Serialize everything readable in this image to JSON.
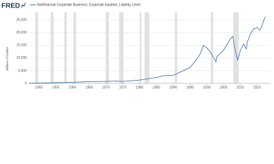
{
  "brand": "FRED",
  "chart_data": {
    "type": "line",
    "legend_label": "Nonfinancial Corporate Business; Corporate Equities; Liability, Level",
    "y_label": "Billions of Dollars",
    "color": "#4572a7",
    "grid": true,
    "xlim": [
      1947,
      2019
    ],
    "ylim": [
      0,
      28000
    ],
    "xticks": [
      1950,
      1955,
      1960,
      1965,
      1970,
      1975,
      1980,
      1985,
      1990,
      1995,
      2000,
      2005,
      2010,
      2015
    ],
    "yticks": [
      0,
      {
        "value": 5000,
        "label": "5,000"
      },
      {
        "value": 10000,
        "label": "10,000"
      },
      {
        "value": 15000,
        "label": "15,000"
      },
      {
        "value": 20000,
        "label": "20,000"
      },
      {
        "value": 25000,
        "label": "25,000"
      }
    ],
    "recessions": [
      [
        1948.9,
        1949.8
      ],
      [
        1953.5,
        1954.4
      ],
      [
        1957.6,
        1958.3
      ],
      [
        1960.3,
        1961.1
      ],
      [
        1969.9,
        1970.9
      ],
      [
        1973.9,
        1975.2
      ],
      [
        1980.0,
        1980.5
      ],
      [
        1981.5,
        1982.9
      ],
      [
        1990.5,
        1991.2
      ],
      [
        2001.2,
        2001.9
      ],
      [
        2007.9,
        2009.5
      ]
    ],
    "x": [
      1947,
      1950,
      1955,
      1960,
      1965,
      1970,
      1973,
      1975,
      1980,
      1985,
      1987,
      1990,
      1993,
      1995,
      1997,
      1998,
      1999,
      2000,
      2001,
      2002.75,
      2003,
      2005,
      2007,
      2007.75,
      2008.5,
      2009.2,
      2010,
      2011,
      2011.75,
      2012,
      2013,
      2014,
      2015,
      2015.75,
      2016.1,
      2016.5,
      2017,
      2017.5
    ],
    "values": [
      90,
      130,
      270,
      420,
      700,
      800,
      900,
      750,
      1300,
      2300,
      3000,
      3100,
      5000,
      6200,
      9500,
      11500,
      15000,
      14000,
      12500,
      8500,
      10500,
      13000,
      17500,
      18500,
      13000,
      9000,
      13000,
      15500,
      13500,
      16000,
      19500,
      21500,
      22000,
      21000,
      21500,
      23000,
      25000,
      26300
    ]
  }
}
